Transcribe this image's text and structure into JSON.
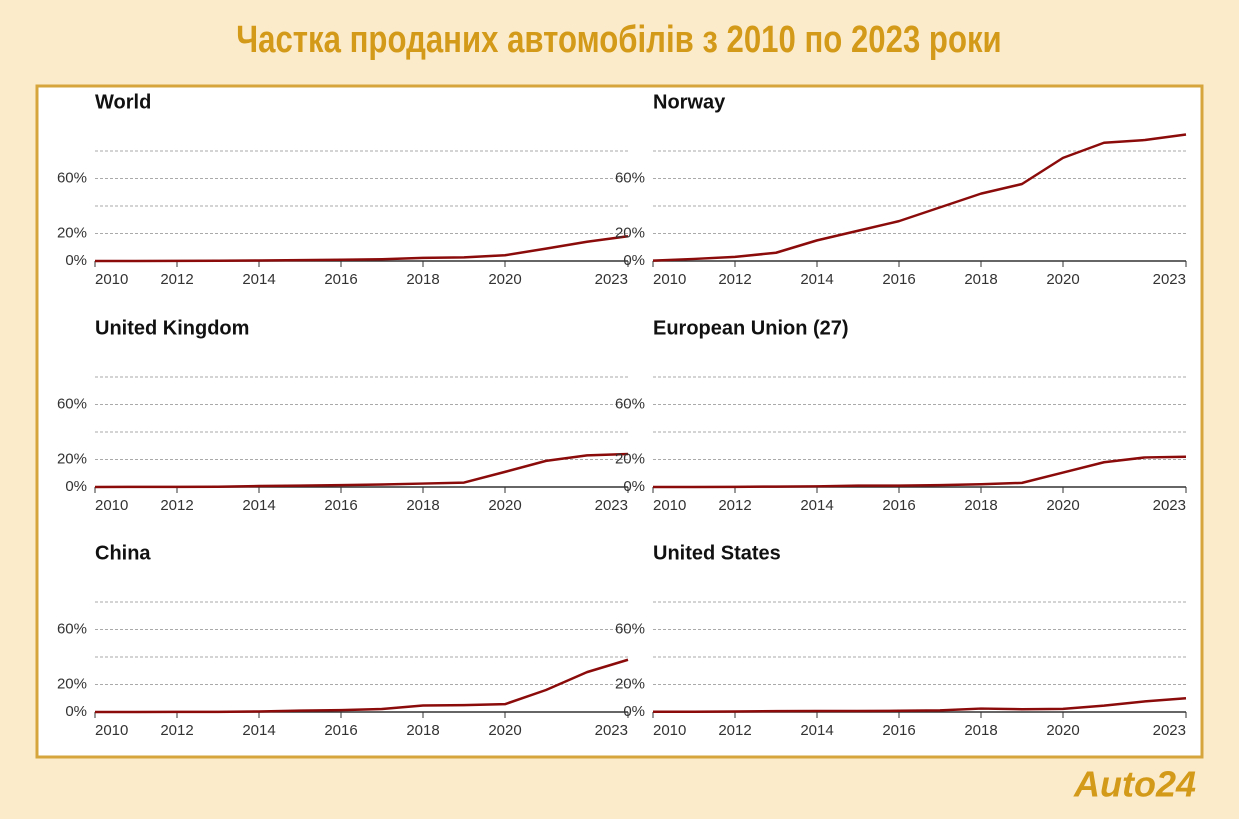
{
  "title": "Частка проданих автомобілів з 2010 по 2023 роки",
  "logo": "Auto24",
  "chart_data": [
    {
      "type": "line",
      "title": "World",
      "color": "#8b0b0b",
      "grid": true,
      "x": [
        2010,
        2011,
        2012,
        2013,
        2014,
        2015,
        2016,
        2017,
        2018,
        2019,
        2020,
        2021,
        2022,
        2023
      ],
      "values": [
        0,
        0,
        0.1,
        0.2,
        0.4,
        0.6,
        0.9,
        1.3,
        2.3,
        2.6,
        4.2,
        9,
        14,
        18
      ],
      "xlim": [
        2010,
        2023
      ],
      "xticks": [
        2010,
        2012,
        2014,
        2016,
        2018,
        2020,
        2023
      ],
      "ylim": [
        0,
        100
      ],
      "yticks": [
        {
          "value": 0,
          "label": "0%"
        },
        {
          "value": 20,
          "label": "20%"
        },
        {
          "value": 40,
          "label": null
        },
        {
          "value": 60,
          "label": "60%"
        },
        {
          "value": 80,
          "label": null
        }
      ]
    },
    {
      "type": "line",
      "title": "Norway",
      "color": "#8b0b0b",
      "grid": true,
      "x": [
        2010,
        2011,
        2012,
        2013,
        2014,
        2015,
        2016,
        2017,
        2018,
        2019,
        2020,
        2021,
        2022,
        2023
      ],
      "values": [
        0.3,
        1.5,
        3,
        6,
        15,
        22,
        29,
        39,
        49,
        56,
        75,
        86,
        88,
        92
      ],
      "xlim": [
        2010,
        2023
      ],
      "xticks": [
        2010,
        2012,
        2014,
        2016,
        2018,
        2020,
        2023
      ],
      "ylim": [
        0,
        100
      ],
      "yticks": [
        {
          "value": 0,
          "label": "0%"
        },
        {
          "value": 20,
          "label": "20%"
        },
        {
          "value": 40,
          "label": null
        },
        {
          "value": 60,
          "label": "60%"
        },
        {
          "value": 80,
          "label": null
        }
      ]
    },
    {
      "type": "line",
      "title": "United Kingdom",
      "color": "#8b0b0b",
      "grid": true,
      "x": [
        2010,
        2011,
        2012,
        2013,
        2014,
        2015,
        2016,
        2017,
        2018,
        2019,
        2020,
        2021,
        2022,
        2023
      ],
      "values": [
        0,
        0.1,
        0.1,
        0.2,
        0.7,
        1,
        1.4,
        1.8,
        2.5,
        3.2,
        11,
        19,
        23,
        24
      ],
      "xlim": [
        2010,
        2023
      ],
      "xticks": [
        2010,
        2012,
        2014,
        2016,
        2018,
        2020,
        2023
      ],
      "ylim": [
        0,
        100
      ],
      "yticks": [
        {
          "value": 0,
          "label": "0%"
        },
        {
          "value": 20,
          "label": "20%"
        },
        {
          "value": 40,
          "label": null
        },
        {
          "value": 60,
          "label": "60%"
        },
        {
          "value": 80,
          "label": null
        }
      ]
    },
    {
      "type": "line",
      "title": "European Union (27)",
      "color": "#8b0b0b",
      "grid": true,
      "x": [
        2010,
        2011,
        2012,
        2013,
        2014,
        2015,
        2016,
        2017,
        2018,
        2019,
        2020,
        2021,
        2022,
        2023
      ],
      "values": [
        0,
        0,
        0.1,
        0.3,
        0.5,
        1,
        1,
        1.4,
        2,
        3,
        10.5,
        18,
        21.5,
        22
      ],
      "xlim": [
        2010,
        2023
      ],
      "xticks": [
        2010,
        2012,
        2014,
        2016,
        2018,
        2020,
        2023
      ],
      "ylim": [
        0,
        100
      ],
      "yticks": [
        {
          "value": 0,
          "label": "0%"
        },
        {
          "value": 20,
          "label": "20%"
        },
        {
          "value": 40,
          "label": null
        },
        {
          "value": 60,
          "label": "60%"
        },
        {
          "value": 80,
          "label": null
        }
      ]
    },
    {
      "type": "line",
      "title": "China",
      "color": "#8b0b0b",
      "grid": true,
      "x": [
        2010,
        2011,
        2012,
        2013,
        2014,
        2015,
        2016,
        2017,
        2018,
        2019,
        2020,
        2021,
        2022,
        2023
      ],
      "values": [
        0,
        0,
        0.1,
        0.1,
        0.4,
        1,
        1.4,
        2.2,
        4.7,
        5,
        5.7,
        16,
        29,
        38
      ],
      "xlim": [
        2010,
        2023
      ],
      "xticks": [
        2010,
        2012,
        2014,
        2016,
        2018,
        2020,
        2023
      ],
      "ylim": [
        0,
        100
      ],
      "yticks": [
        {
          "value": 0,
          "label": "0%"
        },
        {
          "value": 20,
          "label": "20%"
        },
        {
          "value": 40,
          "label": null
        },
        {
          "value": 60,
          "label": "60%"
        },
        {
          "value": 80,
          "label": null
        }
      ]
    },
    {
      "type": "line",
      "title": "United States",
      "color": "#8b0b0b",
      "grid": true,
      "x": [
        2010,
        2011,
        2012,
        2013,
        2014,
        2015,
        2016,
        2017,
        2018,
        2019,
        2020,
        2021,
        2022,
        2023
      ],
      "values": [
        0.2,
        0.2,
        0.4,
        0.6,
        0.7,
        0.7,
        0.9,
        1.2,
        2.5,
        2,
        2.3,
        4.6,
        7.7,
        10
      ],
      "xlim": [
        2010,
        2023
      ],
      "xticks": [
        2010,
        2012,
        2014,
        2016,
        2018,
        2020,
        2023
      ],
      "ylim": [
        0,
        100
      ],
      "yticks": [
        {
          "value": 0,
          "label": "0%"
        },
        {
          "value": 20,
          "label": "20%"
        },
        {
          "value": 40,
          "label": null
        },
        {
          "value": 60,
          "label": "60%"
        },
        {
          "value": 80,
          "label": null
        }
      ]
    }
  ]
}
